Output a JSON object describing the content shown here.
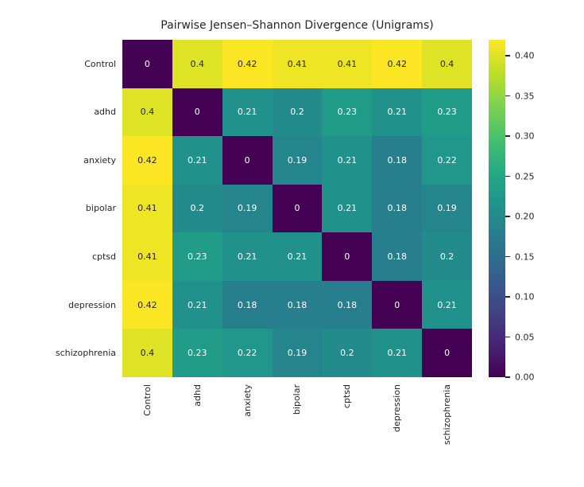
{
  "figure": {
    "background": "#ffffff",
    "text_color": "#262626"
  },
  "chart_data": {
    "type": "heatmap",
    "title": "Pairwise Jensen–Shannon Divergence (Unigrams)",
    "categories": [
      "Control",
      "adhd",
      "anxiety",
      "bipolar",
      "cptsd",
      "depression",
      "schizophrenia"
    ],
    "matrix": [
      [
        0,
        0.4,
        0.42,
        0.41,
        0.41,
        0.42,
        0.4
      ],
      [
        0.4,
        0,
        0.21,
        0.2,
        0.23,
        0.21,
        0.23
      ],
      [
        0.42,
        0.21,
        0,
        0.19,
        0.21,
        0.18,
        0.22
      ],
      [
        0.41,
        0.2,
        0.19,
        0,
        0.21,
        0.18,
        0.19
      ],
      [
        0.41,
        0.23,
        0.21,
        0.21,
        0,
        0.18,
        0.2
      ],
      [
        0.42,
        0.21,
        0.18,
        0.18,
        0.18,
        0,
        0.21
      ],
      [
        0.4,
        0.23,
        0.22,
        0.19,
        0.2,
        0.21,
        0
      ]
    ],
    "annotated": true,
    "colormap": "viridis",
    "vmin": 0.0,
    "vmax": 0.42,
    "grid": false,
    "legend": false,
    "colorbar": {
      "position": "right",
      "tick_labels": [
        "0.00",
        "0.05",
        "0.10",
        "0.15",
        "0.20",
        "0.25",
        "0.30",
        "0.35",
        "0.40"
      ]
    }
  }
}
